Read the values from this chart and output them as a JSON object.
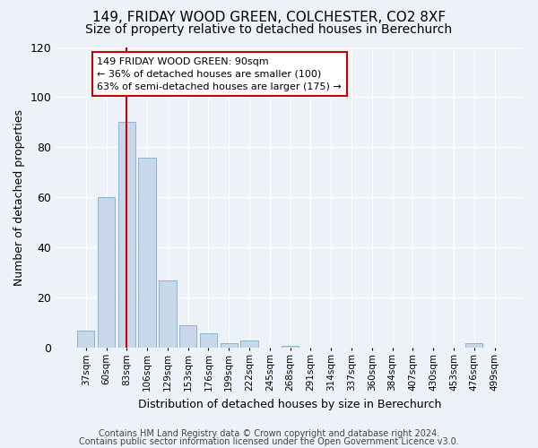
{
  "title": "149, FRIDAY WOOD GREEN, COLCHESTER, CO2 8XF",
  "subtitle": "Size of property relative to detached houses in Berechurch",
  "xlabel": "Distribution of detached houses by size in Berechurch",
  "ylabel": "Number of detached properties",
  "bar_color": "#c8d8ea",
  "bar_edge_color": "#8ab4cc",
  "categories": [
    "37sqm",
    "60sqm",
    "83sqm",
    "106sqm",
    "129sqm",
    "153sqm",
    "176sqm",
    "199sqm",
    "222sqm",
    "245sqm",
    "268sqm",
    "291sqm",
    "314sqm",
    "337sqm",
    "360sqm",
    "384sqm",
    "407sqm",
    "430sqm",
    "453sqm",
    "476sqm",
    "499sqm"
  ],
  "values": [
    7,
    60,
    90,
    76,
    27,
    9,
    6,
    2,
    3,
    0,
    1,
    0,
    0,
    0,
    0,
    0,
    0,
    0,
    0,
    2,
    0
  ],
  "vline_x_index": 2,
  "vline_color": "#cc0000",
  "annotation_text": "149 FRIDAY WOOD GREEN: 90sqm\n← 36% of detached houses are smaller (100)\n63% of semi-detached houses are larger (175) →",
  "annotation_box_color": "white",
  "annotation_box_edge": "#cc0000",
  "ylim": [
    0,
    120
  ],
  "yticks": [
    0,
    20,
    40,
    60,
    80,
    100,
    120
  ],
  "background_color": "#edf2f8",
  "grid_color": "white",
  "footer1": "Contains HM Land Registry data © Crown copyright and database right 2024.",
  "footer2": "Contains public sector information licensed under the Open Government Licence v3.0.",
  "title_fontsize": 11,
  "subtitle_fontsize": 10,
  "annotation_fontsize": 8,
  "footer_fontsize": 7,
  "ylabel_fontsize": 9,
  "xlabel_fontsize": 9,
  "ytick_fontsize": 9,
  "xtick_fontsize": 7.5
}
